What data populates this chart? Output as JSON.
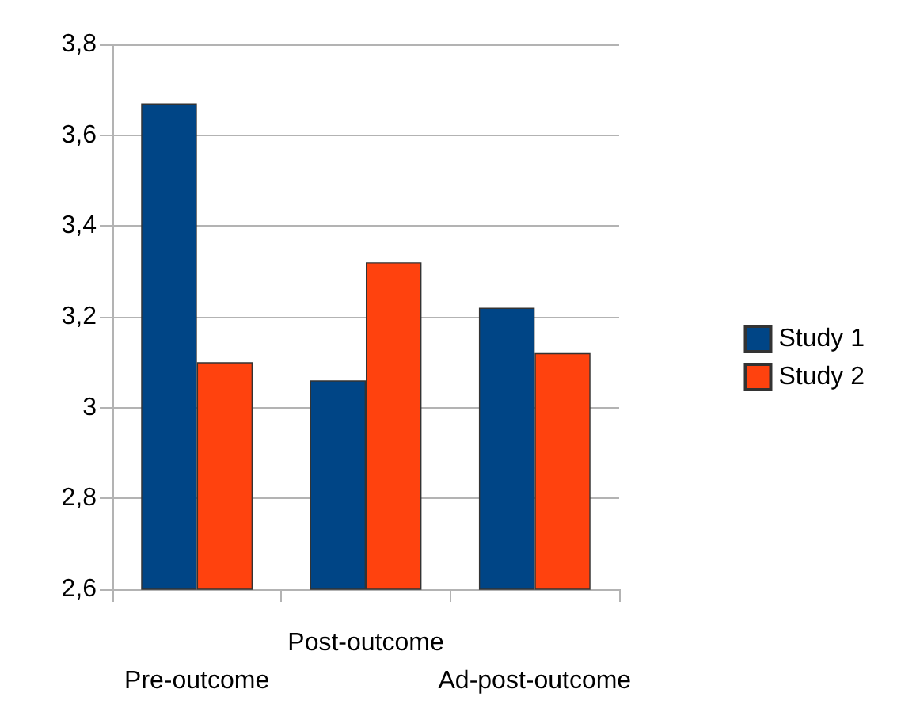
{
  "chart_data": {
    "type": "bar",
    "categories": [
      "Pre-outcome",
      "Post-outcome",
      "Ad-post-outcome"
    ],
    "series": [
      {
        "name": "Study 1",
        "color": "#004586",
        "values": [
          3.67,
          3.06,
          3.22
        ]
      },
      {
        "name": "Study 2",
        "color": "#ff420e",
        "values": [
          3.1,
          3.32,
          3.12
        ]
      }
    ],
    "ylim": [
      2.6,
      3.8
    ],
    "yticks": [
      {
        "value": 2.6,
        "label": "2,6"
      },
      {
        "value": 2.8,
        "label": "2,8"
      },
      3,
      {
        "value": 3.2,
        "label": "3,2"
      },
      {
        "value": 3.4,
        "label": "3,4"
      },
      {
        "value": 3.6,
        "label": "3,6"
      },
      {
        "value": 3.8,
        "label": "3,8"
      }
    ],
    "grid": "y",
    "legend": "right"
  }
}
